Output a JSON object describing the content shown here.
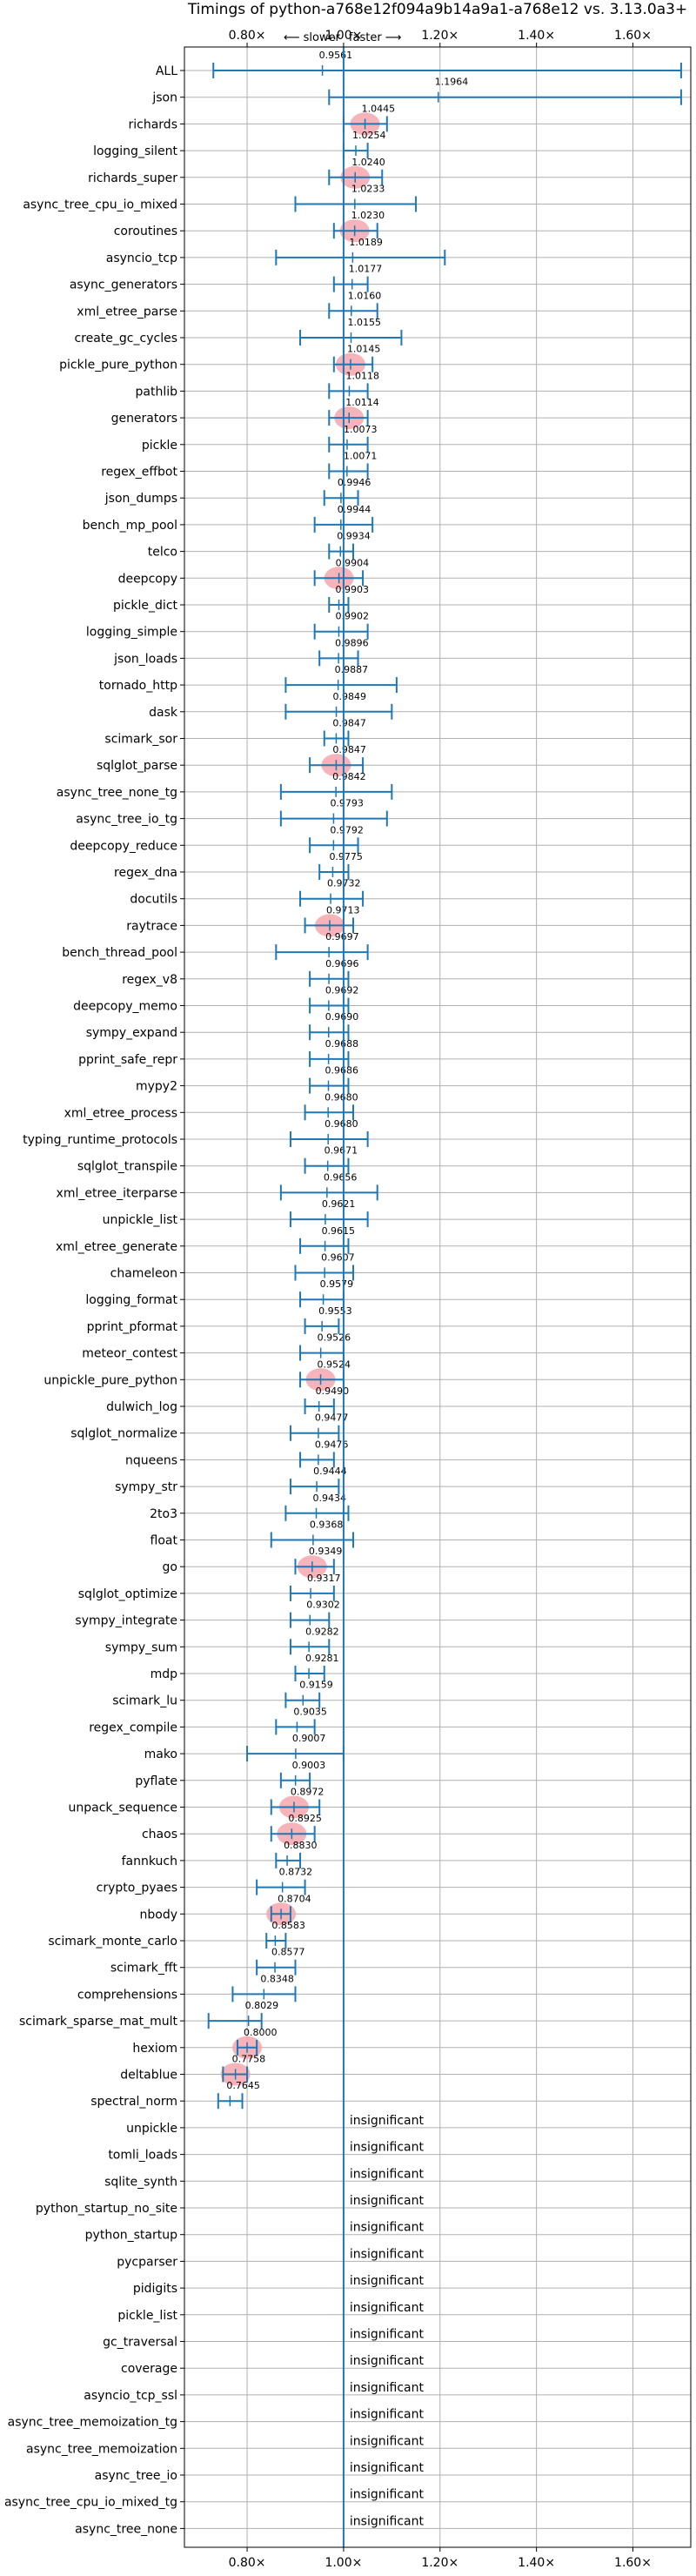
{
  "chart_data": {
    "type": "violin",
    "title": "Timings of python-a768e12f094a9b14a9a1-a768e12 vs. 3.13.0a3+",
    "direction_labels": {
      "slower": "⟵ slower",
      "faster": "faster ⟶"
    },
    "xlim": [
      0.67,
      1.72
    ],
    "xticks": [
      0.8,
      1.0,
      1.2,
      1.4,
      1.6
    ],
    "xtick_labels": [
      "0.80×",
      "1.00×",
      "1.20×",
      "1.40×",
      "1.60×"
    ],
    "grid": true,
    "insignificant_text": "insignificant",
    "colors": {
      "violin": "#a6c8e6",
      "whisker": "#1f77b4",
      "highlight": "#f4a6ad",
      "grid": "#b0b0b0",
      "axis": "#000000"
    },
    "benchmarks": [
      {
        "name": "ALL",
        "value": 0.9561,
        "min": 0.73,
        "max": 1.7,
        "width": 0.16,
        "highlight": false,
        "significant": true
      },
      {
        "name": "json",
        "value": 1.1964,
        "min": 0.97,
        "max": 1.7,
        "width": 0.6,
        "highlight": false,
        "significant": true
      },
      {
        "name": "richards",
        "value": 1.0445,
        "min": 1.0,
        "max": 1.09,
        "width": 0.7,
        "highlight": true,
        "significant": true
      },
      {
        "name": "logging_silent",
        "value": 1.0254,
        "min": 1.0,
        "max": 1.05,
        "width": 0.5,
        "highlight": false,
        "significant": true
      },
      {
        "name": "richards_super",
        "value": 1.024,
        "min": 0.97,
        "max": 1.08,
        "width": 0.7,
        "highlight": true,
        "significant": true
      },
      {
        "name": "async_tree_cpu_io_mixed",
        "value": 1.0233,
        "min": 0.9,
        "max": 1.15,
        "width": 0.5,
        "highlight": false,
        "significant": true
      },
      {
        "name": "coroutines",
        "value": 1.023,
        "min": 0.98,
        "max": 1.07,
        "width": 0.7,
        "highlight": true,
        "significant": true
      },
      {
        "name": "asyncio_tcp",
        "value": 1.0189,
        "min": 0.86,
        "max": 1.21,
        "width": 0.6,
        "highlight": false,
        "significant": true
      },
      {
        "name": "async_generators",
        "value": 1.0177,
        "min": 0.98,
        "max": 1.05,
        "width": 0.5,
        "highlight": false,
        "significant": true
      },
      {
        "name": "xml_etree_parse",
        "value": 1.016,
        "min": 0.97,
        "max": 1.07,
        "width": 0.5,
        "highlight": false,
        "significant": true
      },
      {
        "name": "create_gc_cycles",
        "value": 1.0155,
        "min": 0.91,
        "max": 1.12,
        "width": 0.5,
        "highlight": false,
        "significant": true
      },
      {
        "name": "pickle_pure_python",
        "value": 1.0145,
        "min": 0.98,
        "max": 1.06,
        "width": 0.7,
        "highlight": true,
        "significant": true
      },
      {
        "name": "pathlib",
        "value": 1.0118,
        "min": 0.97,
        "max": 1.05,
        "width": 0.5,
        "highlight": false,
        "significant": true
      },
      {
        "name": "generators",
        "value": 1.0114,
        "min": 0.97,
        "max": 1.05,
        "width": 0.7,
        "highlight": true,
        "significant": true
      },
      {
        "name": "pickle",
        "value": 1.0073,
        "min": 0.97,
        "max": 1.05,
        "width": 0.5,
        "highlight": false,
        "significant": true
      },
      {
        "name": "regex_effbot",
        "value": 1.0071,
        "min": 0.97,
        "max": 1.05,
        "width": 0.5,
        "highlight": false,
        "significant": true
      },
      {
        "name": "json_dumps",
        "value": 0.9946,
        "min": 0.96,
        "max": 1.03,
        "width": 0.5,
        "highlight": false,
        "significant": true
      },
      {
        "name": "bench_mp_pool",
        "value": 0.9944,
        "min": 0.94,
        "max": 1.06,
        "width": 0.5,
        "highlight": false,
        "significant": true
      },
      {
        "name": "telco",
        "value": 0.9934,
        "min": 0.97,
        "max": 1.02,
        "width": 0.5,
        "highlight": false,
        "significant": true
      },
      {
        "name": "deepcopy",
        "value": 0.9904,
        "min": 0.94,
        "max": 1.04,
        "width": 0.7,
        "highlight": true,
        "significant": true
      },
      {
        "name": "pickle_dict",
        "value": 0.9903,
        "min": 0.97,
        "max": 1.01,
        "width": 0.5,
        "highlight": false,
        "significant": true
      },
      {
        "name": "logging_simple",
        "value": 0.9902,
        "min": 0.94,
        "max": 1.05,
        "width": 0.5,
        "highlight": false,
        "significant": true
      },
      {
        "name": "json_loads",
        "value": 0.9896,
        "min": 0.95,
        "max": 1.03,
        "width": 0.5,
        "highlight": false,
        "significant": true
      },
      {
        "name": "tornado_http",
        "value": 0.9887,
        "min": 0.88,
        "max": 1.11,
        "width": 0.5,
        "highlight": false,
        "significant": true
      },
      {
        "name": "dask",
        "value": 0.9849,
        "min": 0.88,
        "max": 1.1,
        "width": 0.5,
        "highlight": false,
        "significant": true
      },
      {
        "name": "scimark_sor",
        "value": 0.9847,
        "min": 0.96,
        "max": 1.01,
        "width": 0.5,
        "highlight": false,
        "significant": true
      },
      {
        "name": "sqlglot_parse",
        "value": 0.9847,
        "min": 0.93,
        "max": 1.04,
        "width": 0.7,
        "highlight": true,
        "significant": true
      },
      {
        "name": "async_tree_none_tg",
        "value": 0.9842,
        "min": 0.87,
        "max": 1.1,
        "width": 0.5,
        "highlight": false,
        "significant": true
      },
      {
        "name": "async_tree_io_tg",
        "value": 0.9793,
        "min": 0.87,
        "max": 1.09,
        "width": 0.5,
        "highlight": false,
        "significant": true
      },
      {
        "name": "deepcopy_reduce",
        "value": 0.9792,
        "min": 0.93,
        "max": 1.03,
        "width": 0.5,
        "highlight": false,
        "significant": true
      },
      {
        "name": "regex_dna",
        "value": 0.9775,
        "min": 0.95,
        "max": 1.01,
        "width": 0.5,
        "highlight": false,
        "significant": true
      },
      {
        "name": "docutils",
        "value": 0.9732,
        "min": 0.91,
        "max": 1.04,
        "width": 0.5,
        "highlight": false,
        "significant": true
      },
      {
        "name": "raytrace",
        "value": 0.9713,
        "min": 0.92,
        "max": 1.02,
        "width": 0.7,
        "highlight": true,
        "significant": true
      },
      {
        "name": "bench_thread_pool",
        "value": 0.9697,
        "min": 0.86,
        "max": 1.05,
        "width": 0.5,
        "highlight": false,
        "significant": true
      },
      {
        "name": "regex_v8",
        "value": 0.9696,
        "min": 0.93,
        "max": 1.01,
        "width": 0.5,
        "highlight": false,
        "significant": true
      },
      {
        "name": "deepcopy_memo",
        "value": 0.9692,
        "min": 0.93,
        "max": 1.01,
        "width": 0.5,
        "highlight": false,
        "significant": true
      },
      {
        "name": "sympy_expand",
        "value": 0.969,
        "min": 0.93,
        "max": 1.01,
        "width": 0.5,
        "highlight": false,
        "significant": true
      },
      {
        "name": "pprint_safe_repr",
        "value": 0.9688,
        "min": 0.93,
        "max": 1.01,
        "width": 0.5,
        "highlight": false,
        "significant": true
      },
      {
        "name": "mypy2",
        "value": 0.9686,
        "min": 0.93,
        "max": 1.01,
        "width": 0.5,
        "highlight": false,
        "significant": true
      },
      {
        "name": "xml_etree_process",
        "value": 0.968,
        "min": 0.92,
        "max": 1.02,
        "width": 0.5,
        "highlight": false,
        "significant": true
      },
      {
        "name": "typing_runtime_protocols",
        "value": 0.968,
        "min": 0.89,
        "max": 1.05,
        "width": 0.5,
        "highlight": false,
        "significant": true
      },
      {
        "name": "sqlglot_transpile",
        "value": 0.9671,
        "min": 0.92,
        "max": 1.01,
        "width": 0.5,
        "highlight": false,
        "significant": true
      },
      {
        "name": "xml_etree_iterparse",
        "value": 0.9656,
        "min": 0.87,
        "max": 1.07,
        "width": 0.5,
        "highlight": false,
        "significant": true
      },
      {
        "name": "unpickle_list",
        "value": 0.9621,
        "min": 0.89,
        "max": 1.05,
        "width": 0.5,
        "highlight": false,
        "significant": true
      },
      {
        "name": "xml_etree_generate",
        "value": 0.9615,
        "min": 0.91,
        "max": 1.01,
        "width": 0.5,
        "highlight": false,
        "significant": true
      },
      {
        "name": "chameleon",
        "value": 0.9607,
        "min": 0.9,
        "max": 1.02,
        "width": 0.5,
        "highlight": false,
        "significant": true
      },
      {
        "name": "logging_format",
        "value": 0.9579,
        "min": 0.91,
        "max": 1.0,
        "width": 0.5,
        "highlight": false,
        "significant": true
      },
      {
        "name": "pprint_pformat",
        "value": 0.9553,
        "min": 0.92,
        "max": 0.99,
        "width": 0.5,
        "highlight": false,
        "significant": true
      },
      {
        "name": "meteor_contest",
        "value": 0.9526,
        "min": 0.91,
        "max": 1.0,
        "width": 0.5,
        "highlight": false,
        "significant": true
      },
      {
        "name": "unpickle_pure_python",
        "value": 0.9524,
        "min": 0.91,
        "max": 1.0,
        "width": 0.7,
        "highlight": true,
        "significant": true
      },
      {
        "name": "dulwich_log",
        "value": 0.949,
        "min": 0.92,
        "max": 0.98,
        "width": 0.5,
        "highlight": false,
        "significant": true
      },
      {
        "name": "sqlglot_normalize",
        "value": 0.9477,
        "min": 0.89,
        "max": 0.99,
        "width": 0.5,
        "highlight": false,
        "significant": true
      },
      {
        "name": "nqueens",
        "value": 0.9476,
        "min": 0.91,
        "max": 0.98,
        "width": 0.5,
        "highlight": false,
        "significant": true
      },
      {
        "name": "sympy_str",
        "value": 0.9444,
        "min": 0.89,
        "max": 0.99,
        "width": 0.5,
        "highlight": false,
        "significant": true
      },
      {
        "name": "2to3",
        "value": 0.9434,
        "min": 0.88,
        "max": 1.01,
        "width": 0.5,
        "highlight": false,
        "significant": true
      },
      {
        "name": "float",
        "value": 0.9368,
        "min": 0.85,
        "max": 1.02,
        "width": 0.6,
        "highlight": false,
        "significant": true
      },
      {
        "name": "go",
        "value": 0.9349,
        "min": 0.9,
        "max": 0.98,
        "width": 0.7,
        "highlight": true,
        "significant": true
      },
      {
        "name": "sqlglot_optimize",
        "value": 0.9317,
        "min": 0.89,
        "max": 0.98,
        "width": 0.5,
        "highlight": false,
        "significant": true
      },
      {
        "name": "sympy_integrate",
        "value": 0.9302,
        "min": 0.89,
        "max": 0.97,
        "width": 0.5,
        "highlight": false,
        "significant": true
      },
      {
        "name": "sympy_sum",
        "value": 0.9282,
        "min": 0.89,
        "max": 0.97,
        "width": 0.5,
        "highlight": false,
        "significant": true
      },
      {
        "name": "mdp",
        "value": 0.9281,
        "min": 0.9,
        "max": 0.96,
        "width": 0.5,
        "highlight": false,
        "significant": true
      },
      {
        "name": "scimark_lu",
        "value": 0.9159,
        "min": 0.88,
        "max": 0.95,
        "width": 0.5,
        "highlight": false,
        "significant": true
      },
      {
        "name": "regex_compile",
        "value": 0.9035,
        "min": 0.86,
        "max": 0.94,
        "width": 0.5,
        "highlight": false,
        "significant": true
      },
      {
        "name": "mako",
        "value": 0.9007,
        "min": 0.8,
        "max": 1.0,
        "width": 0.6,
        "highlight": false,
        "significant": true
      },
      {
        "name": "pyflate",
        "value": 0.9003,
        "min": 0.87,
        "max": 0.93,
        "width": 0.5,
        "highlight": false,
        "significant": true
      },
      {
        "name": "unpack_sequence",
        "value": 0.8972,
        "min": 0.85,
        "max": 0.95,
        "width": 0.7,
        "highlight": true,
        "significant": true
      },
      {
        "name": "chaos",
        "value": 0.8925,
        "min": 0.85,
        "max": 0.94,
        "width": 0.7,
        "highlight": true,
        "significant": true
      },
      {
        "name": "fannkuch",
        "value": 0.883,
        "min": 0.86,
        "max": 0.91,
        "width": 0.5,
        "highlight": false,
        "significant": true
      },
      {
        "name": "crypto_pyaes",
        "value": 0.8732,
        "min": 0.82,
        "max": 0.92,
        "width": 0.5,
        "highlight": false,
        "significant": true
      },
      {
        "name": "nbody",
        "value": 0.8704,
        "min": 0.85,
        "max": 0.89,
        "width": 0.7,
        "highlight": true,
        "significant": true
      },
      {
        "name": "scimark_monte_carlo",
        "value": 0.8583,
        "min": 0.84,
        "max": 0.88,
        "width": 0.5,
        "highlight": false,
        "significant": true
      },
      {
        "name": "scimark_fft",
        "value": 0.8577,
        "min": 0.82,
        "max": 0.9,
        "width": 0.5,
        "highlight": false,
        "significant": true
      },
      {
        "name": "comprehensions",
        "value": 0.8348,
        "min": 0.77,
        "max": 0.9,
        "width": 0.5,
        "highlight": false,
        "significant": true
      },
      {
        "name": "scimark_sparse_mat_mult",
        "value": 0.8029,
        "min": 0.72,
        "max": 0.83,
        "width": 0.5,
        "highlight": false,
        "significant": true
      },
      {
        "name": "hexiom",
        "value": 0.8,
        "min": 0.78,
        "max": 0.82,
        "width": 0.7,
        "highlight": true,
        "significant": true
      },
      {
        "name": "deltablue",
        "value": 0.7758,
        "min": 0.75,
        "max": 0.8,
        "width": 0.7,
        "highlight": true,
        "significant": true
      },
      {
        "name": "spectral_norm",
        "value": 0.7645,
        "min": 0.74,
        "max": 0.79,
        "width": 0.5,
        "highlight": false,
        "significant": true
      },
      {
        "name": "unpickle",
        "significant": false
      },
      {
        "name": "tomli_loads",
        "significant": false
      },
      {
        "name": "sqlite_synth",
        "significant": false
      },
      {
        "name": "python_startup_no_site",
        "significant": false
      },
      {
        "name": "python_startup",
        "significant": false
      },
      {
        "name": "pycparser",
        "significant": false
      },
      {
        "name": "pidigits",
        "significant": false
      },
      {
        "name": "pickle_list",
        "significant": false
      },
      {
        "name": "gc_traversal",
        "significant": false
      },
      {
        "name": "coverage",
        "significant": false
      },
      {
        "name": "asyncio_tcp_ssl",
        "significant": false
      },
      {
        "name": "async_tree_memoization_tg",
        "significant": false
      },
      {
        "name": "async_tree_memoization",
        "significant": false
      },
      {
        "name": "async_tree_io",
        "significant": false
      },
      {
        "name": "async_tree_cpu_io_mixed_tg",
        "significant": false
      },
      {
        "name": "async_tree_none",
        "significant": false
      }
    ]
  }
}
